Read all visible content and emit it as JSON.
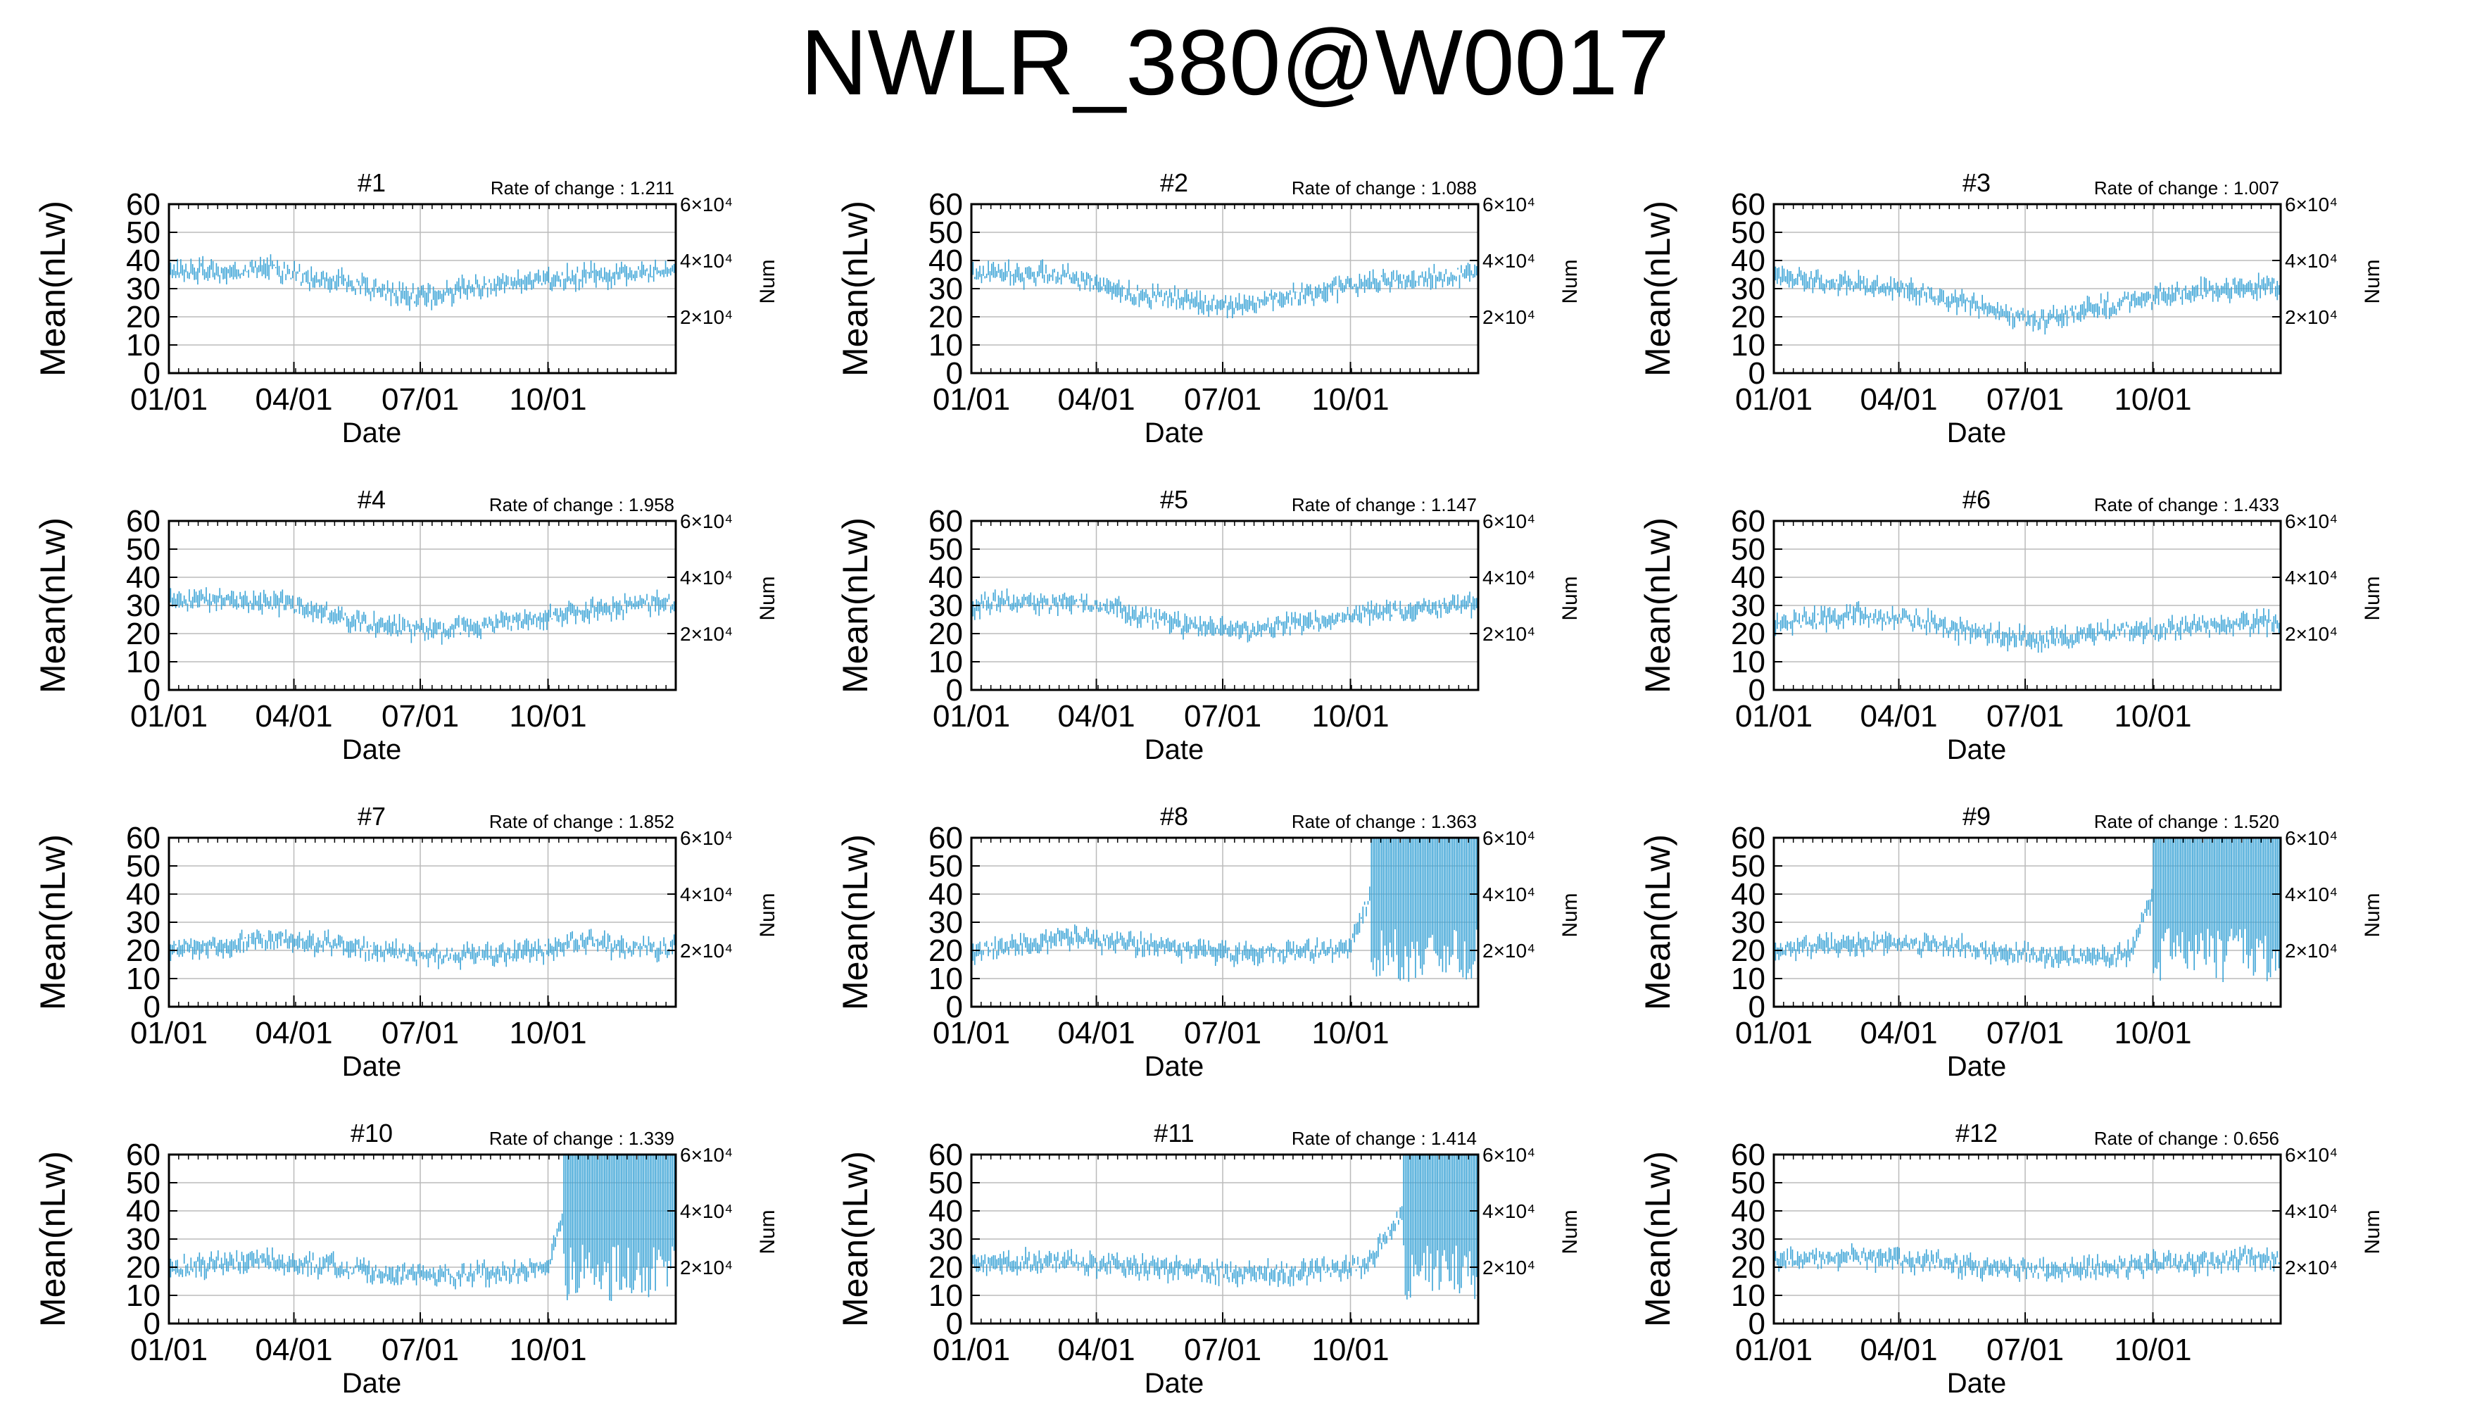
{
  "title": "NWLR_380@W0017",
  "colors": {
    "series": "#3aa3d6",
    "grid": "#bbbbbb",
    "axis": "#000000"
  },
  "chart_data": [
    {
      "type": "line",
      "panel": "#1",
      "rate_of_change": "Rate of change : 1.211",
      "xlabel": "Date",
      "ylabel": "Mean(nLw)",
      "y2label": "Num",
      "x_ticks": [
        "01/01",
        "04/01",
        "07/01",
        "10/01"
      ],
      "y_ticks": [
        "0",
        "10",
        "20",
        "30",
        "40",
        "50",
        "60"
      ],
      "y2_ticks": [
        "2×10⁴",
        "4×10⁴",
        "6×10⁴"
      ],
      "ylim": [
        0,
        60
      ],
      "grid": true,
      "series": [
        {
          "x": [
            "01/01",
            "01/15",
            "02/01",
            "02/15",
            "03/01",
            "03/15",
            "04/01",
            "04/15",
            "05/01",
            "05/15",
            "06/01",
            "06/15",
            "07/01",
            "07/15",
            "08/01",
            "08/15",
            "09/01",
            "09/15",
            "10/01",
            "10/15",
            "11/01",
            "11/15",
            "12/01",
            "12/15",
            "12/31"
          ],
          "values": [
            35,
            37,
            36,
            35,
            38,
            37,
            35,
            33,
            33,
            31,
            30,
            28,
            27,
            28,
            30,
            31,
            32,
            32,
            33,
            34,
            35,
            34,
            36,
            36,
            37
          ]
        }
      ]
    },
    {
      "type": "line",
      "panel": "#2",
      "rate_of_change": "Rate of change : 1.088",
      "xlabel": "Date",
      "ylabel": "Mean(nLw)",
      "y2label": "Num",
      "x_ticks": [
        "01/01",
        "04/01",
        "07/01",
        "10/01"
      ],
      "y_ticks": [
        "0",
        "10",
        "20",
        "30",
        "40",
        "50",
        "60"
      ],
      "y2_ticks": [
        "2×10⁴",
        "4×10⁴",
        "6×10⁴"
      ],
      "ylim": [
        0,
        60
      ],
      "grid": true,
      "series": [
        {
          "x": [
            "01/01",
            "01/15",
            "02/01",
            "02/15",
            "03/01",
            "03/15",
            "04/01",
            "04/15",
            "05/01",
            "05/15",
            "06/01",
            "06/15",
            "07/01",
            "07/15",
            "08/01",
            "08/15",
            "09/01",
            "09/15",
            "10/01",
            "10/15",
            "11/01",
            "11/15",
            "12/01",
            "12/15",
            "12/31"
          ],
          "values": [
            35,
            36,
            35,
            34,
            36,
            34,
            31,
            29,
            28,
            27,
            26,
            25,
            24,
            24,
            26,
            27,
            28,
            29,
            31,
            32,
            33,
            33,
            34,
            35,
            35
          ]
        }
      ]
    },
    {
      "type": "line",
      "panel": "#3",
      "rate_of_change": "Rate of change : 1.007",
      "xlabel": "Date",
      "ylabel": "Mean(nLw)",
      "y2label": "Num",
      "x_ticks": [
        "01/01",
        "04/01",
        "07/01",
        "10/01"
      ],
      "y_ticks": [
        "0",
        "10",
        "20",
        "30",
        "40",
        "50",
        "60"
      ],
      "y2_ticks": [
        "2×10⁴",
        "4×10⁴",
        "6×10⁴"
      ],
      "ylim": [
        0,
        60
      ],
      "grid": true,
      "series": [
        {
          "x": [
            "01/01",
            "01/15",
            "02/01",
            "02/15",
            "03/01",
            "03/15",
            "04/01",
            "04/15",
            "05/01",
            "05/15",
            "06/01",
            "06/15",
            "07/01",
            "07/15",
            "08/01",
            "08/15",
            "09/01",
            "09/15",
            "10/01",
            "10/15",
            "11/01",
            "11/15",
            "12/01",
            "12/15",
            "12/31"
          ],
          "values": [
            33,
            34,
            33,
            32,
            32,
            31,
            31,
            29,
            27,
            25,
            23,
            21,
            19,
            19,
            21,
            23,
            24,
            26,
            27,
            28,
            29,
            29,
            30,
            31,
            31
          ]
        }
      ]
    },
    {
      "type": "line",
      "panel": "#4",
      "rate_of_change": "Rate of change : 1.958",
      "xlabel": "Date",
      "ylabel": "Mean(nLw)",
      "y2label": "Num",
      "x_ticks": [
        "01/01",
        "04/01",
        "07/01",
        "10/01"
      ],
      "y_ticks": [
        "0",
        "10",
        "20",
        "30",
        "40",
        "50",
        "60"
      ],
      "y2_ticks": [
        "2×10⁴",
        "4×10⁴",
        "6×10⁴"
      ],
      "ylim": [
        0,
        60
      ],
      "grid": true,
      "series": [
        {
          "x": [
            "01/01",
            "01/15",
            "02/01",
            "02/15",
            "03/01",
            "03/15",
            "04/01",
            "04/15",
            "05/01",
            "05/15",
            "06/01",
            "06/15",
            "07/01",
            "07/15",
            "08/01",
            "08/15",
            "09/01",
            "09/15",
            "10/01",
            "10/15",
            "11/01",
            "11/15",
            "12/01",
            "12/15",
            "12/31"
          ],
          "values": [
            31,
            32,
            32,
            31,
            32,
            31,
            30,
            28,
            26,
            24,
            23,
            22,
            21,
            21,
            22,
            23,
            24,
            25,
            26,
            27,
            28,
            29,
            30,
            31,
            30
          ]
        }
      ]
    },
    {
      "type": "line",
      "panel": "#5",
      "rate_of_change": "Rate of change : 1.147",
      "xlabel": "Date",
      "ylabel": "Mean(nLw)",
      "y2label": "Num",
      "x_ticks": [
        "01/01",
        "04/01",
        "07/01",
        "10/01"
      ],
      "y_ticks": [
        "0",
        "10",
        "20",
        "30",
        "40",
        "50",
        "60"
      ],
      "y2_ticks": [
        "2×10⁴",
        "4×10⁴",
        "6×10⁴"
      ],
      "ylim": [
        0,
        60
      ],
      "grid": true,
      "series": [
        {
          "x": [
            "01/01",
            "01/15",
            "02/01",
            "02/15",
            "03/01",
            "03/15",
            "04/01",
            "04/15",
            "05/01",
            "05/15",
            "06/01",
            "06/15",
            "07/01",
            "07/15",
            "08/01",
            "08/15",
            "09/01",
            "09/15",
            "10/01",
            "10/15",
            "11/01",
            "11/15",
            "12/01",
            "12/15",
            "12/31"
          ],
          "values": [
            30,
            31,
            31,
            30,
            31,
            31,
            30,
            29,
            27,
            25,
            23,
            22,
            21,
            21,
            22,
            23,
            24,
            25,
            26,
            27,
            28,
            28,
            29,
            30,
            30
          ]
        }
      ]
    },
    {
      "type": "line",
      "panel": "#6",
      "rate_of_change": "Rate of change : 1.433",
      "xlabel": "Date",
      "ylabel": "Mean(nLw)",
      "y2label": "Num",
      "x_ticks": [
        "01/01",
        "04/01",
        "07/01",
        "10/01"
      ],
      "y_ticks": [
        "0",
        "10",
        "20",
        "30",
        "40",
        "50",
        "60"
      ],
      "y2_ticks": [
        "2×10⁴",
        "4×10⁴",
        "6×10⁴"
      ],
      "ylim": [
        0,
        60
      ],
      "grid": true,
      "series": [
        {
          "x": [
            "01/01",
            "01/15",
            "02/01",
            "02/15",
            "03/01",
            "03/15",
            "04/01",
            "04/15",
            "05/01",
            "05/15",
            "06/01",
            "06/15",
            "07/01",
            "07/15",
            "08/01",
            "08/15",
            "09/01",
            "09/15",
            "10/01",
            "10/15",
            "11/01",
            "11/15",
            "12/01",
            "12/15",
            "12/31"
          ],
          "values": [
            23,
            24,
            25,
            26,
            27,
            26,
            26,
            25,
            23,
            21,
            20,
            19,
            18,
            18,
            19,
            20,
            20,
            21,
            21,
            22,
            22,
            23,
            23,
            24,
            24
          ]
        }
      ]
    },
    {
      "type": "line",
      "panel": "#7",
      "rate_of_change": "Rate of change : 1.852",
      "xlabel": "Date",
      "ylabel": "Mean(nLw)",
      "y2label": "Num",
      "x_ticks": [
        "01/01",
        "04/01",
        "07/01",
        "10/01"
      ],
      "y_ticks": [
        "0",
        "10",
        "20",
        "30",
        "40",
        "50",
        "60"
      ],
      "y2_ticks": [
        "2×10⁴",
        "4×10⁴",
        "6×10⁴"
      ],
      "ylim": [
        0,
        60
      ],
      "grid": true,
      "series": [
        {
          "x": [
            "01/01",
            "01/15",
            "02/01",
            "02/15",
            "03/01",
            "03/15",
            "04/01",
            "04/15",
            "05/01",
            "05/15",
            "06/01",
            "06/15",
            "07/01",
            "07/15",
            "08/01",
            "08/15",
            "09/01",
            "09/15",
            "10/01",
            "10/15",
            "11/01",
            "11/15",
            "12/01",
            "12/15",
            "12/31"
          ],
          "values": [
            20,
            21,
            21,
            22,
            23,
            24,
            24,
            23,
            22,
            21,
            20,
            19,
            18,
            18,
            18,
            18,
            19,
            19,
            20,
            22,
            24,
            22,
            21,
            20,
            21
          ]
        }
      ]
    },
    {
      "type": "line",
      "panel": "#8",
      "rate_of_change": "Rate of change : 1.363",
      "xlabel": "Date",
      "ylabel": "Mean(nLw)",
      "y2label": "Num",
      "x_ticks": [
        "01/01",
        "04/01",
        "07/01",
        "10/01"
      ],
      "y_ticks": [
        "0",
        "10",
        "20",
        "30",
        "40",
        "50",
        "60"
      ],
      "y2_ticks": [
        "2×10⁴",
        "4×10⁴",
        "6×10⁴"
      ],
      "ylim": [
        0,
        60
      ],
      "grid": true,
      "series": [
        {
          "x": [
            "01/01",
            "01/15",
            "02/01",
            "02/15",
            "03/01",
            "03/15",
            "04/01",
            "04/15",
            "05/01",
            "05/15",
            "06/01",
            "06/15",
            "07/01",
            "07/15",
            "08/01",
            "08/15",
            "09/01",
            "09/15",
            "10/01",
            "10/15",
            "11/01",
            "11/15",
            "12/01",
            "12/15",
            "12/31"
          ],
          "values": [
            20,
            21,
            22,
            23,
            24,
            25,
            24,
            23,
            22,
            21,
            20,
            20,
            19,
            19,
            19,
            19,
            20,
            20,
            21,
            40,
            50,
            45,
            40,
            42,
            45
          ]
        }
      ]
    },
    {
      "type": "line",
      "panel": "#9",
      "rate_of_change": "Rate of change : 1.520",
      "xlabel": "Date",
      "ylabel": "Mean(nLw)",
      "y2label": "Num",
      "x_ticks": [
        "01/01",
        "04/01",
        "07/01",
        "10/01"
      ],
      "y_ticks": [
        "0",
        "10",
        "20",
        "30",
        "40",
        "50",
        "60"
      ],
      "y2_ticks": [
        "2×10⁴",
        "4×10⁴",
        "6×10⁴"
      ],
      "ylim": [
        0,
        60
      ],
      "grid": true,
      "series": [
        {
          "x": [
            "01/01",
            "01/15",
            "02/01",
            "02/15",
            "03/01",
            "03/15",
            "04/01",
            "04/15",
            "05/01",
            "05/15",
            "06/01",
            "06/15",
            "07/01",
            "07/15",
            "08/01",
            "08/15",
            "09/01",
            "09/15",
            "10/01",
            "10/15",
            "11/01",
            "11/15",
            "12/01",
            "12/15",
            "12/31"
          ],
          "values": [
            20,
            21,
            21,
            22,
            22,
            23,
            22,
            22,
            21,
            21,
            20,
            19,
            19,
            18,
            18,
            18,
            18,
            19,
            40,
            48,
            45,
            42,
            44,
            45,
            45
          ]
        }
      ]
    },
    {
      "type": "line",
      "panel": "#10",
      "rate_of_change": "Rate of change : 1.339",
      "xlabel": "Date",
      "ylabel": "Mean(nLw)",
      "y2label": "Num",
      "x_ticks": [
        "01/01",
        "04/01",
        "07/01",
        "10/01"
      ],
      "y_ticks": [
        "0",
        "10",
        "20",
        "30",
        "40",
        "50",
        "60"
      ],
      "y2_ticks": [
        "2×10⁴",
        "4×10⁴",
        "6×10⁴"
      ],
      "ylim": [
        0,
        60
      ],
      "grid": true,
      "series": [
        {
          "x": [
            "01/01",
            "01/15",
            "02/01",
            "02/15",
            "03/01",
            "03/15",
            "04/01",
            "04/15",
            "05/01",
            "05/15",
            "06/01",
            "06/15",
            "07/01",
            "07/15",
            "08/01",
            "08/15",
            "09/01",
            "09/15",
            "10/01",
            "10/15",
            "11/01",
            "11/15",
            "12/01",
            "12/15",
            "12/31"
          ],
          "values": [
            20,
            20,
            21,
            21,
            22,
            22,
            21,
            21,
            20,
            19,
            18,
            18,
            17,
            17,
            17,
            18,
            18,
            19,
            20,
            45,
            50,
            45,
            42,
            44,
            45
          ]
        }
      ]
    },
    {
      "type": "line",
      "panel": "#11",
      "rate_of_change": "Rate of change : 1.414",
      "xlabel": "Date",
      "ylabel": "Mean(nLw)",
      "y2label": "Num",
      "x_ticks": [
        "01/01",
        "04/01",
        "07/01",
        "10/01"
      ],
      "y_ticks": [
        "0",
        "10",
        "20",
        "30",
        "40",
        "50",
        "60"
      ],
      "y2_ticks": [
        "2×10⁴",
        "4×10⁴",
        "6×10⁴"
      ],
      "ylim": [
        0,
        60
      ],
      "grid": true,
      "series": [
        {
          "x": [
            "01/01",
            "01/15",
            "02/01",
            "02/15",
            "03/01",
            "03/15",
            "04/01",
            "04/15",
            "05/01",
            "05/15",
            "06/01",
            "06/15",
            "07/01",
            "07/15",
            "08/01",
            "08/15",
            "09/01",
            "09/15",
            "10/01",
            "10/15",
            "11/01",
            "11/15",
            "12/01",
            "12/15",
            "12/31"
          ],
          "values": [
            21,
            21,
            22,
            22,
            22,
            22,
            21,
            21,
            20,
            20,
            19,
            19,
            18,
            18,
            18,
            18,
            19,
            19,
            20,
            22,
            35,
            45,
            50,
            48,
            46
          ]
        }
      ]
    },
    {
      "type": "line",
      "panel": "#12",
      "rate_of_change": "Rate of change : 0.656",
      "xlabel": "Date",
      "ylabel": "Mean(nLw)",
      "y2label": "Num",
      "x_ticks": [
        "01/01",
        "04/01",
        "07/01",
        "10/01"
      ],
      "y_ticks": [
        "0",
        "10",
        "20",
        "30",
        "40",
        "50",
        "60"
      ],
      "y2_ticks": [
        "2×10⁴",
        "4×10⁴",
        "6×10⁴"
      ],
      "ylim": [
        0,
        60
      ],
      "grid": true,
      "series": [
        {
          "x": [
            "01/01",
            "01/15",
            "02/01",
            "02/15",
            "03/01",
            "03/15",
            "04/01",
            "04/15",
            "05/01",
            "05/15",
            "06/01",
            "06/15",
            "07/01",
            "07/15",
            "08/01",
            "08/15",
            "09/01",
            "09/15",
            "10/01",
            "10/15",
            "11/01",
            "11/15",
            "12/01",
            "12/15",
            "12/31"
          ],
          "values": [
            22,
            23,
            23,
            23,
            24,
            23,
            23,
            22,
            22,
            21,
            20,
            20,
            19,
            19,
            19,
            19,
            20,
            20,
            21,
            21,
            22,
            22,
            23,
            23,
            23
          ]
        }
      ]
    }
  ]
}
